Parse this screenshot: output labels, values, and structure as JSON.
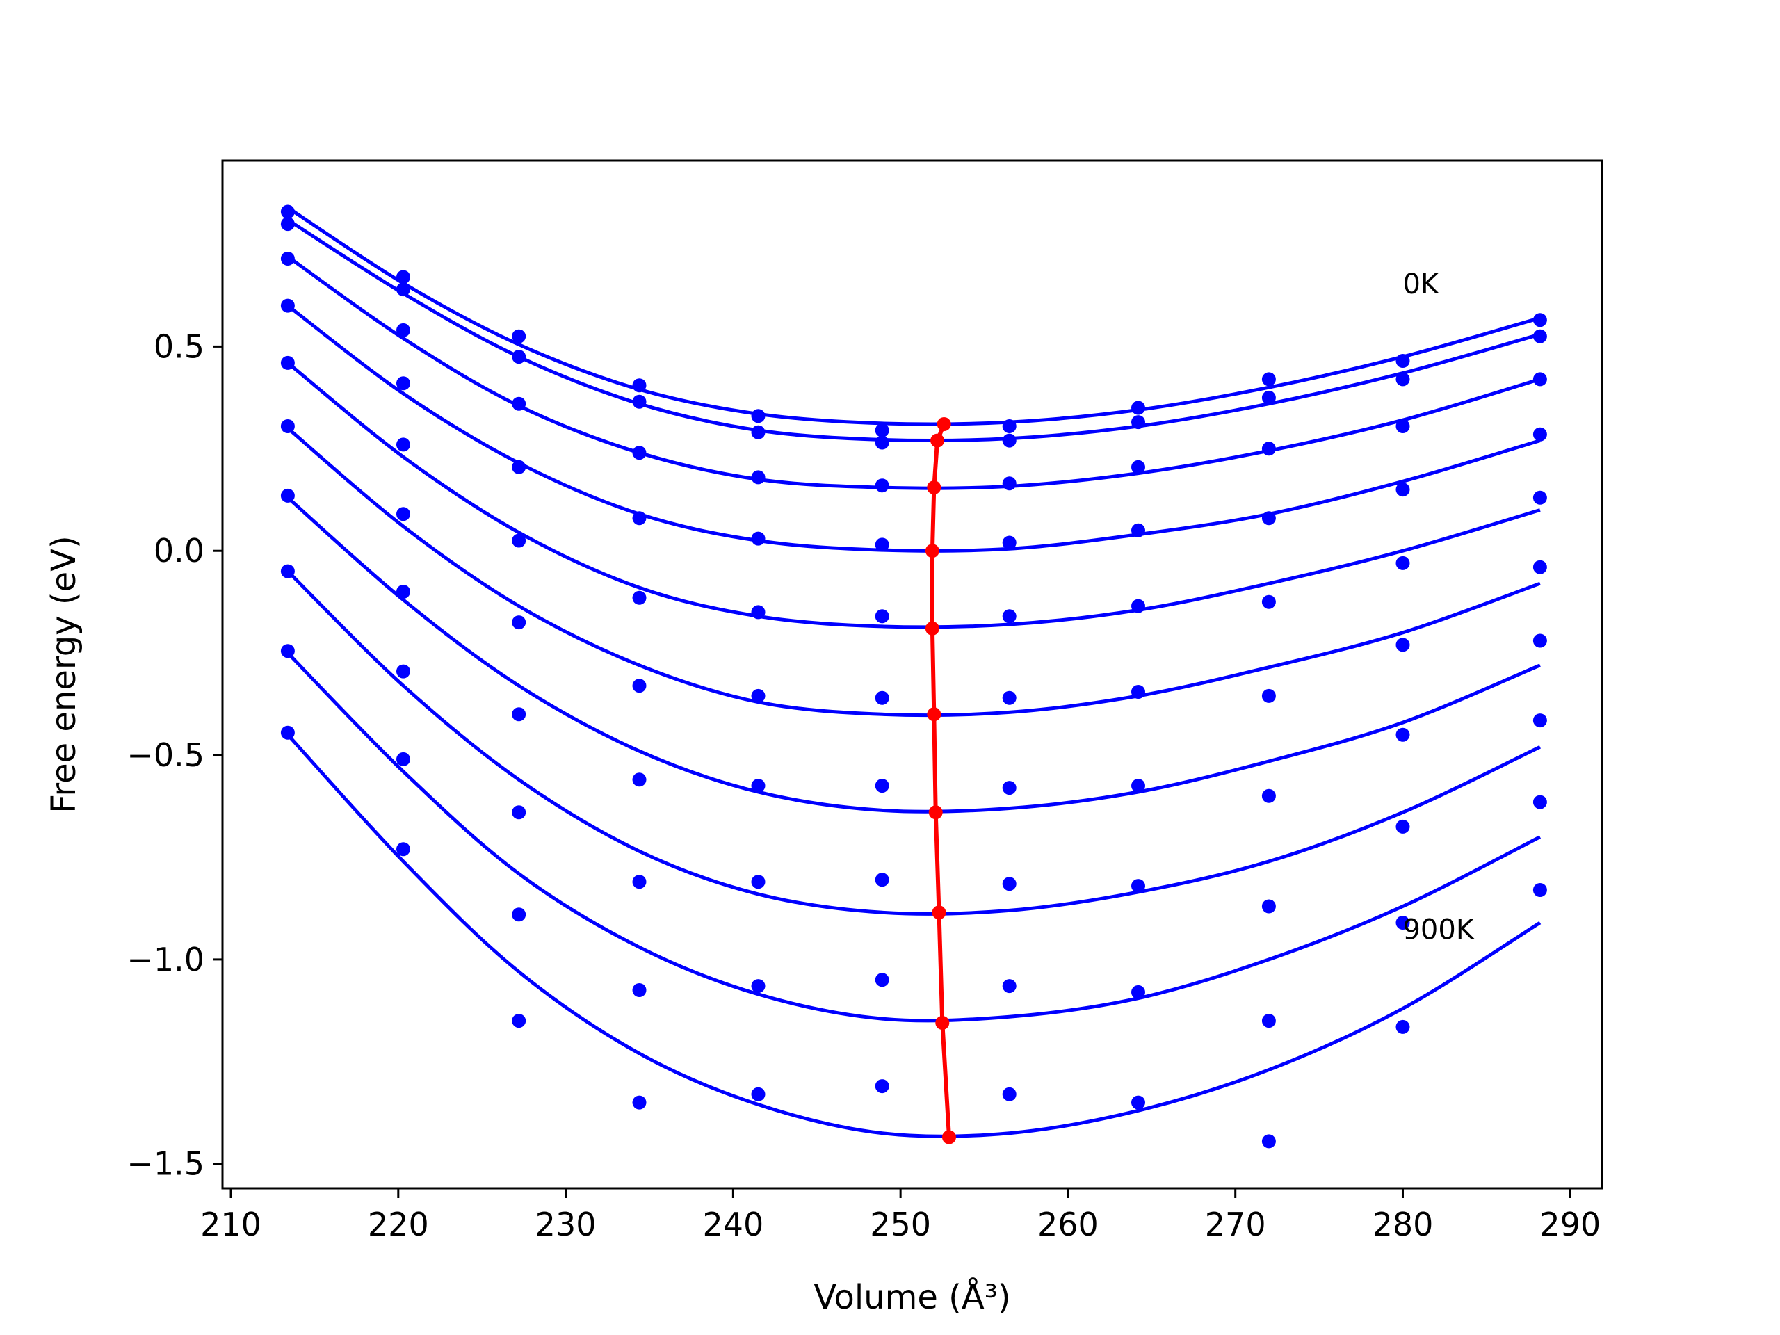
{
  "chart_data": {
    "type": "scatter",
    "xlabel": "Volume (Å³)",
    "ylabel": "Free energy (eV)",
    "xlim": [
      209.5,
      291.9
    ],
    "ylim": [
      -1.56,
      0.955
    ],
    "xticks": [
      210,
      220,
      230,
      240,
      250,
      260,
      270,
      280,
      290
    ],
    "yticks": [
      -1.5,
      -1.0,
      -0.5,
      0.0,
      0.5
    ],
    "ytick_labels": [
      "−1.5",
      "−1.0",
      "−0.5",
      "0.0",
      "0.5"
    ],
    "annotations": [
      {
        "text": "0K",
        "x": 280.0,
        "y": 0.63
      },
      {
        "text": "900K",
        "x": 280.0,
        "y": -0.95
      }
    ],
    "colors": {
      "series": "#0000ff",
      "minimum_path": "#ff0000"
    },
    "volumes": [
      213.4,
      220.3,
      227.2,
      234.4,
      241.5,
      248.9,
      256.5,
      264.2,
      272.0,
      280.0,
      288.2
    ],
    "series": [
      {
        "curve": [
          0.84,
          0.655,
          0.505,
          0.395,
          0.335,
          0.312,
          0.315,
          0.345,
          0.4,
          0.475,
          0.57
        ],
        "points": [
          0.83,
          0.67,
          0.525,
          0.405,
          0.33,
          0.295,
          0.305,
          0.35,
          0.42,
          0.465,
          0.565
        ]
      },
      {
        "curve": [
          0.81,
          0.63,
          0.475,
          0.36,
          0.295,
          0.272,
          0.275,
          0.305,
          0.36,
          0.435,
          0.53
        ],
        "points": [
          0.8,
          0.64,
          0.475,
          0.365,
          0.29,
          0.265,
          0.27,
          0.315,
          0.375,
          0.42,
          0.525
        ]
      },
      {
        "curve": [
          0.72,
          0.52,
          0.355,
          0.24,
          0.175,
          0.155,
          0.158,
          0.19,
          0.245,
          0.32,
          0.42
        ],
        "points": [
          0.715,
          0.54,
          0.36,
          0.24,
          0.18,
          0.16,
          0.165,
          0.205,
          0.25,
          0.305,
          0.42
        ]
      },
      {
        "curve": [
          0.6,
          0.385,
          0.215,
          0.09,
          0.025,
          0.002,
          0.005,
          0.04,
          0.09,
          0.17,
          0.27
        ],
        "points": [
          0.6,
          0.41,
          0.205,
          0.08,
          0.03,
          0.015,
          0.02,
          0.05,
          0.08,
          0.15,
          0.285
        ]
      },
      {
        "curve": [
          0.46,
          0.23,
          0.045,
          -0.09,
          -0.16,
          -0.185,
          -0.18,
          -0.145,
          -0.08,
          0.0,
          0.1
        ],
        "points": [
          0.46,
          0.26,
          0.025,
          -0.115,
          -0.15,
          -0.16,
          -0.16,
          -0.135,
          -0.125,
          -0.03,
          0.13
        ]
      },
      {
        "curve": [
          0.3,
          0.06,
          -0.135,
          -0.28,
          -0.37,
          -0.4,
          -0.395,
          -0.355,
          -0.285,
          -0.2,
          -0.08
        ],
        "points": [
          0.305,
          0.09,
          -0.175,
          -0.33,
          -0.355,
          -0.36,
          -0.36,
          -0.345,
          -0.355,
          -0.23,
          -0.04
        ]
      },
      {
        "curve": [
          0.13,
          -0.12,
          -0.33,
          -0.49,
          -0.59,
          -0.635,
          -0.63,
          -0.59,
          -0.515,
          -0.42,
          -0.28
        ],
        "points": [
          0.135,
          -0.1,
          -0.4,
          -0.56,
          -0.575,
          -0.575,
          -0.58,
          -0.575,
          -0.6,
          -0.45,
          -0.22
        ]
      },
      {
        "curve": [
          -0.05,
          -0.33,
          -0.56,
          -0.735,
          -0.84,
          -0.885,
          -0.88,
          -0.835,
          -0.76,
          -0.64,
          -0.48
        ],
        "points": [
          -0.05,
          -0.295,
          -0.64,
          -0.81,
          -0.81,
          -0.805,
          -0.815,
          -0.82,
          -0.87,
          -0.675,
          -0.415
        ]
      },
      {
        "curve": [
          -0.25,
          -0.54,
          -0.79,
          -0.97,
          -1.085,
          -1.145,
          -1.14,
          -1.095,
          -1.0,
          -0.87,
          -0.7
        ],
        "points": [
          -0.245,
          -0.51,
          -0.89,
          -1.075,
          -1.065,
          -1.05,
          -1.065,
          -1.08,
          -1.15,
          -0.91,
          -0.615
        ]
      },
      {
        "curve": [
          -0.45,
          -0.76,
          -1.03,
          -1.23,
          -1.355,
          -1.425,
          -1.425,
          -1.37,
          -1.27,
          -1.12,
          -0.91
        ],
        "points": [
          -0.445,
          -0.73,
          -1.15,
          -1.35,
          -1.33,
          -1.31,
          -1.33,
          -1.35,
          -1.445,
          -1.165,
          -0.83
        ]
      }
    ],
    "minimum_path": {
      "x": [
        252.6,
        252.2,
        252.0,
        251.9,
        251.9,
        252.0,
        252.1,
        252.3,
        252.5,
        252.9
      ],
      "y": [
        0.31,
        0.27,
        0.155,
        0.0,
        -0.19,
        -0.4,
        -0.64,
        -0.885,
        -1.155,
        -1.435
      ]
    }
  }
}
